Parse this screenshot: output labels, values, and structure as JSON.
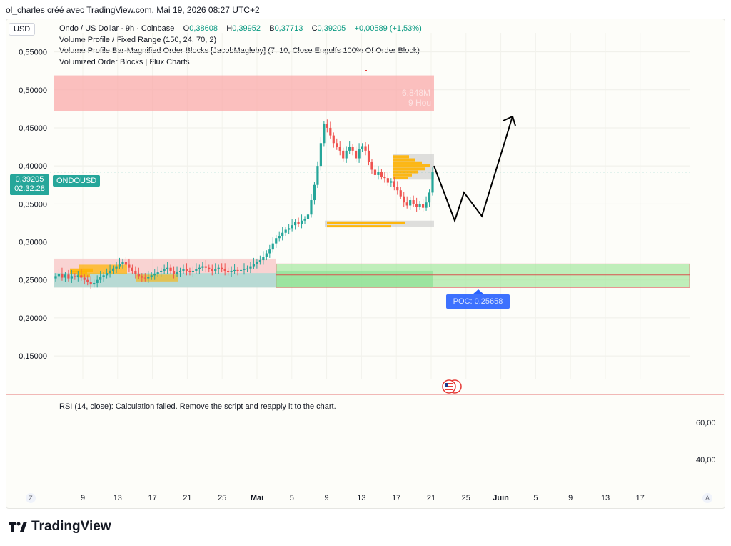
{
  "header": {
    "credit": "ol_charles créé avec TradingView.com, Mai 19, 2026 08:27 UTC+2"
  },
  "currency": "USD",
  "legend": {
    "title": "Ondo / US Dollar · 9h · Coinbase",
    "o_label": "O",
    "o_value": "0,38608",
    "h_label": "H",
    "h_value": "0,39952",
    "b_label": "B",
    "b_value": "0,37713",
    "c_label": "C",
    "c_value": "0,39205",
    "change": "+0,00589 (+1,53%)",
    "indicators": [
      "Volume Profile / Fixed Range (150, 24, 70, 2)",
      "Volume Profile Bar-Magnified Order Blocks [JacobMagleby] (7, 10, Close Engulfs 100% Of Order Block)",
      "Volumized Order Blocks | Flux Charts"
    ]
  },
  "price_badge": {
    "price": "0,39205",
    "countdown": "02:32:28",
    "symbol": "ONDOUSD"
  },
  "order_block_labels": {
    "top_volume": "6.848M",
    "top_timeframe": "9 Hou",
    "poc": "POC: 0.25658"
  },
  "rsi": {
    "message": "RSI (14, close): Calculation failed. Remove the script and reapply it to the chart.",
    "ticks": [
      "60,00",
      "40,00"
    ]
  },
  "axis_buttons": {
    "left": "Z",
    "right": "A"
  },
  "brand": "TradingView",
  "colors": {
    "up": "#26a69a",
    "down": "#ef5350",
    "bear_zone": "#f9a9a9",
    "bull_zone": "#a5e8a0",
    "poc": "#2962ff",
    "profile": "#ffb300"
  },
  "chart_data": {
    "type": "candlestick",
    "symbol": "ONDOUSD",
    "timeframe": "9h",
    "y_ticks": [
      "0,55000",
      "0,50000",
      "0,45000",
      "0,40000",
      "0,35000",
      "0,30000",
      "0,25000",
      "0,20000",
      "0,15000"
    ],
    "y_tick_values": [
      0.55,
      0.5,
      0.45,
      0.4,
      0.35,
      0.3,
      0.25,
      0.2,
      0.15
    ],
    "ylim": [
      0.12,
      0.575
    ],
    "x_ticks": [
      "9",
      "13",
      "17",
      "21",
      "25",
      "Mai",
      "5",
      "9",
      "13",
      "17",
      "21",
      "25",
      "Juin",
      "5",
      "9",
      "13",
      "17"
    ],
    "last_close": 0.39205,
    "closes": [
      0.255,
      0.258,
      0.253,
      0.257,
      0.252,
      0.255,
      0.254,
      0.256,
      0.253,
      0.25,
      0.247,
      0.244,
      0.246,
      0.25,
      0.254,
      0.256,
      0.259,
      0.262,
      0.265,
      0.268,
      0.271,
      0.274,
      0.27,
      0.266,
      0.262,
      0.258,
      0.255,
      0.253,
      0.252,
      0.254,
      0.256,
      0.258,
      0.26,
      0.262,
      0.264,
      0.266,
      0.262,
      0.258,
      0.26,
      0.262,
      0.264,
      0.262,
      0.26,
      0.262,
      0.264,
      0.266,
      0.268,
      0.266,
      0.264,
      0.262,
      0.264,
      0.266,
      0.264,
      0.262,
      0.26,
      0.262,
      0.263,
      0.262,
      0.263,
      0.264,
      0.265,
      0.268,
      0.271,
      0.274,
      0.276,
      0.28,
      0.285,
      0.29,
      0.298,
      0.305,
      0.308,
      0.312,
      0.316,
      0.318,
      0.322,
      0.326,
      0.324,
      0.328,
      0.33,
      0.336,
      0.355,
      0.375,
      0.4,
      0.43,
      0.455,
      0.45,
      0.44,
      0.43,
      0.425,
      0.42,
      0.41,
      0.42,
      0.425,
      0.42,
      0.41,
      0.422,
      0.426,
      0.42,
      0.405,
      0.395,
      0.388,
      0.392,
      0.386,
      0.384,
      0.378,
      0.38,
      0.372,
      0.368,
      0.36,
      0.352,
      0.348,
      0.355,
      0.35,
      0.346,
      0.35,
      0.345,
      0.352,
      0.365,
      0.392
    ],
    "zones": [
      {
        "kind": "bearish_order_block",
        "top": 0.519,
        "bottom": 0.472,
        "volume": "6.848M"
      },
      {
        "kind": "bullish_order_block",
        "top": 0.271,
        "bottom": 0.24
      },
      {
        "kind": "poc",
        "price": 0.25658
      }
    ],
    "projection_path": [
      [
        0,
        0.4
      ],
      [
        1,
        0.328
      ],
      [
        2,
        0.365
      ],
      [
        3,
        0.334
      ],
      [
        4,
        0.465
      ]
    ],
    "rsi_ticks": [
      60,
      40
    ]
  }
}
